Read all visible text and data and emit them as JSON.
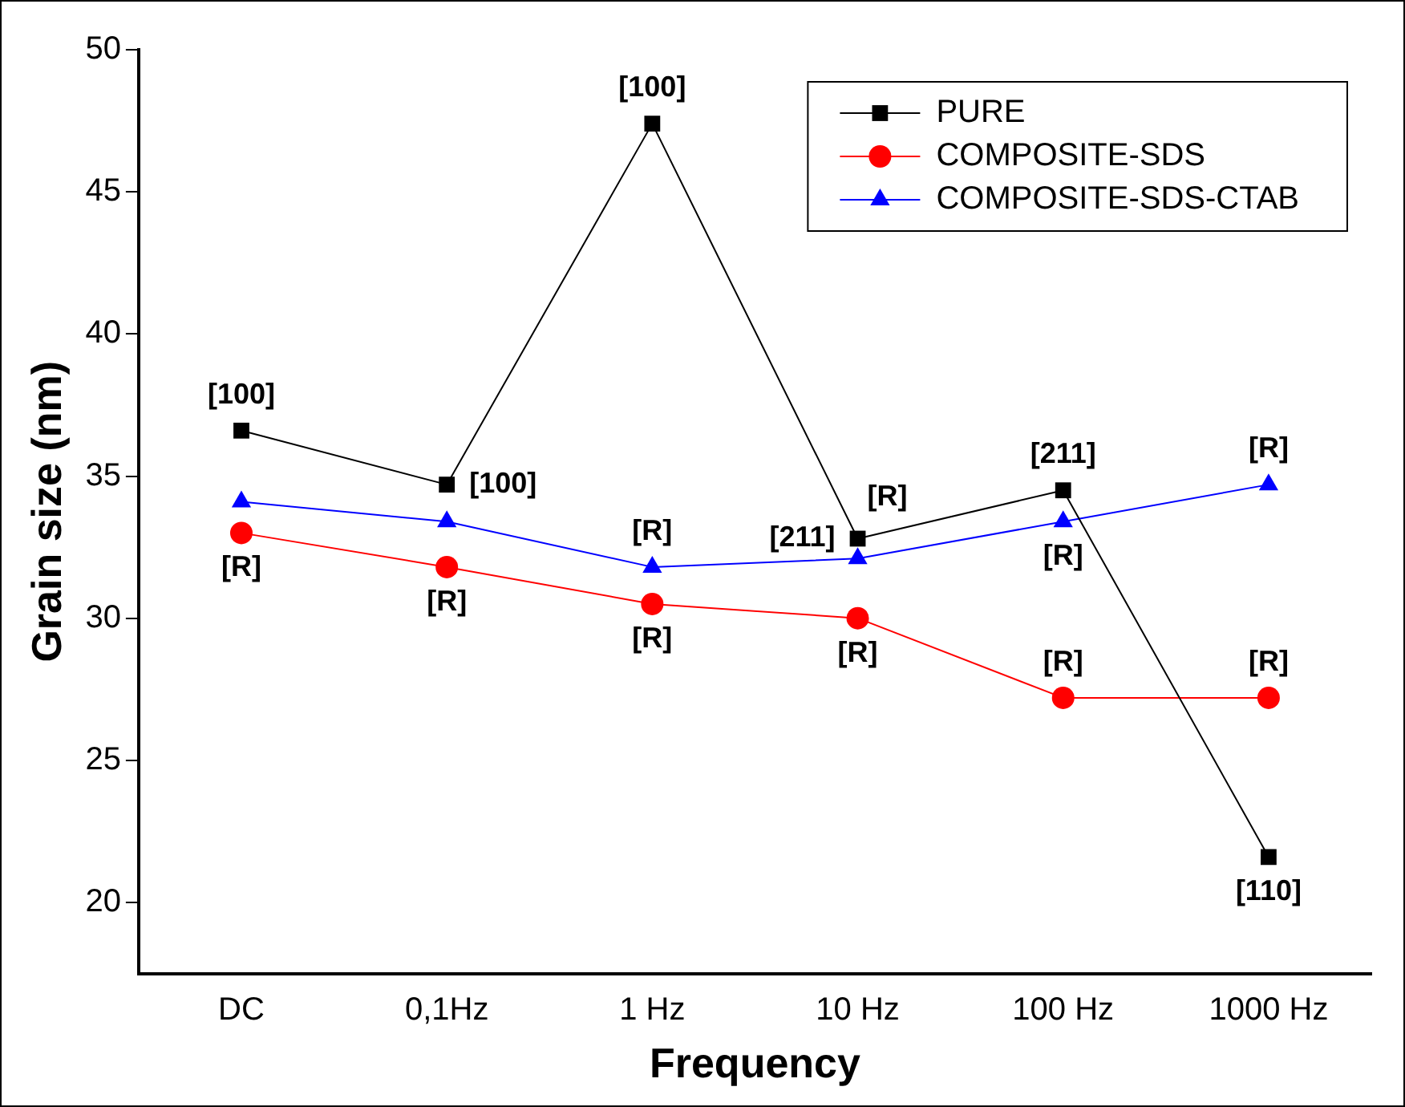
{
  "chart_data": {
    "type": "line",
    "xlabel": "Frequency",
    "ylabel": "Grain size (nm)",
    "categories": [
      "DC",
      "0,1Hz",
      "1 Hz",
      "10 Hz",
      "100 Hz",
      "1000 Hz"
    ],
    "series": [
      {
        "name": "PURE",
        "color": "#000000",
        "marker": "square",
        "values": [
          36.6,
          34.7,
          47.4,
          32.8,
          34.5,
          21.6
        ]
      },
      {
        "name": "COMPOSITE-SDS",
        "color": "#ff0000",
        "marker": "circle",
        "values": [
          33.0,
          31.8,
          30.5,
          30.0,
          27.2,
          27.2
        ]
      },
      {
        "name": "COMPOSITE-SDS-CTAB",
        "color": "#0000ff",
        "marker": "triangle",
        "values": [
          34.1,
          33.4,
          31.8,
          32.1,
          33.4,
          34.7
        ]
      }
    ],
    "ylim": [
      17.5,
      50
    ],
    "yticks": [
      20,
      25,
      30,
      35,
      40,
      45,
      50
    ],
    "grid": false,
    "legend": "top right",
    "line_style": "solid",
    "annotations": [
      {
        "text": "[100]",
        "x": "DC",
        "y": 36.6
      },
      {
        "text": "[R]",
        "x": "DC",
        "y": 33.0
      },
      {
        "text": "[100]",
        "x": "0,1Hz",
        "y": 34.7
      },
      {
        "text": "[R]",
        "x": "0,1Hz",
        "y": 31.8
      },
      {
        "text": "[100]",
        "x": "1 Hz",
        "y": 47.4
      },
      {
        "text": "[R]",
        "x": "1 Hz",
        "y": 31.8
      },
      {
        "text": "[R]",
        "x": "1 Hz",
        "y": 30.5
      },
      {
        "text": "[211]",
        "x": "10 Hz",
        "y": 32.8
      },
      {
        "text": "[R]",
        "x": "10 Hz",
        "y": 32.1
      },
      {
        "text": "[R]",
        "x": "10 Hz",
        "y": 30.0
      },
      {
        "text": "[211]",
        "x": "100 Hz",
        "y": 34.5
      },
      {
        "text": "[R]",
        "x": "100 Hz",
        "y": 33.4
      },
      {
        "text": "[R]",
        "x": "100 Hz",
        "y": 27.2
      },
      {
        "text": "[R]",
        "x": "1000 Hz",
        "y": 34.7
      },
      {
        "text": "[R]",
        "x": "1000 Hz",
        "y": 27.2
      },
      {
        "text": "[110]",
        "x": "1000 Hz",
        "y": 21.6
      }
    ]
  }
}
